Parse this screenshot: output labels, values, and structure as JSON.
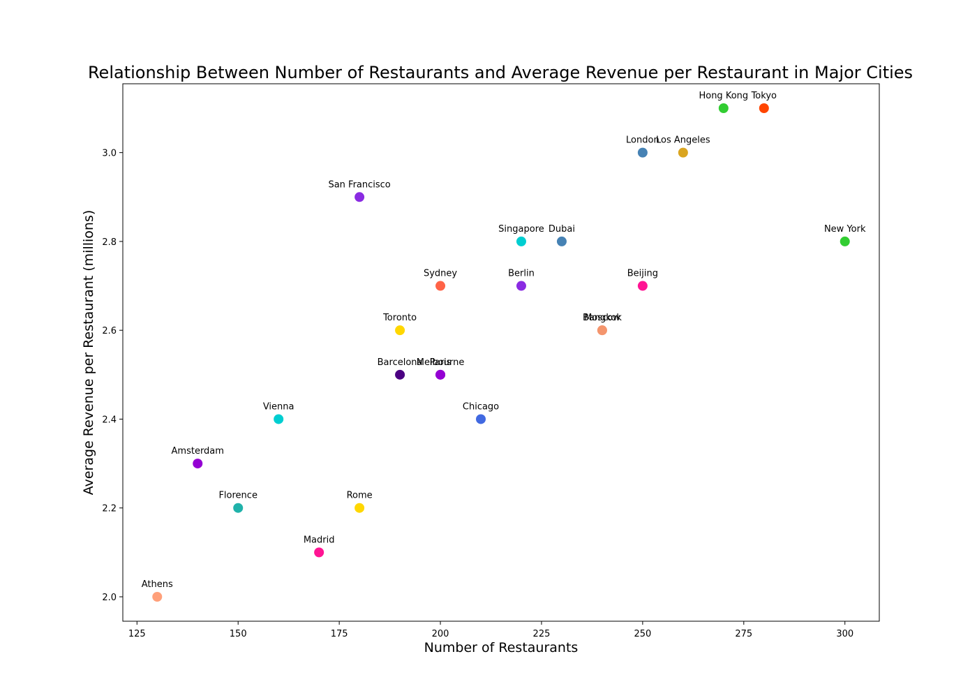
{
  "chart_data": {
    "type": "scatter",
    "title": "Relationship Between Number of Restaurants and Average Revenue per Restaurant in Major Cities",
    "xlabel": "Number of Restaurants",
    "ylabel": "Average Revenue per Restaurant (millions)",
    "xlim": [
      121.5,
      308.5
    ],
    "ylim": [
      1.945,
      3.155
    ],
    "xticks": [
      125,
      150,
      175,
      200,
      225,
      250,
      275,
      300
    ],
    "yticks": [
      2.0,
      2.2,
      2.4,
      2.6,
      2.8,
      3.0
    ],
    "yticks_labels": [
      "2.0",
      "2.2",
      "2.4",
      "2.6",
      "2.8",
      "3.0"
    ],
    "grid": false,
    "points": [
      {
        "name": "New York",
        "x": 300,
        "y": 2.8,
        "color": "#32cd32"
      },
      {
        "name": "Tokyo",
        "x": 280,
        "y": 3.1,
        "color": "#ff4500"
      },
      {
        "name": "Hong Kong",
        "x": 270,
        "y": 3.1,
        "color": "#32cd32"
      },
      {
        "name": "Los Angeles",
        "x": 260,
        "y": 3.0,
        "color": "#daa520"
      },
      {
        "name": "London",
        "x": 250,
        "y": 3.0,
        "color": "#4682b4"
      },
      {
        "name": "Beijing",
        "x": 250,
        "y": 2.7,
        "color": "#ff1493"
      },
      {
        "name": "Moscow",
        "x": 240,
        "y": 2.6,
        "color": "#ffa07a"
      },
      {
        "name": "Bangkok",
        "x": 240,
        "y": 2.6,
        "color": "#f4956d"
      },
      {
        "name": "Dubai",
        "x": 230,
        "y": 2.8,
        "color": "#4682b4"
      },
      {
        "name": "Singapore",
        "x": 220,
        "y": 2.8,
        "color": "#00ced1"
      },
      {
        "name": "Berlin",
        "x": 220,
        "y": 2.7,
        "color": "#8a2be2"
      },
      {
        "name": "Chicago",
        "x": 210,
        "y": 2.4,
        "color": "#4169e1"
      },
      {
        "name": "Sydney",
        "x": 200,
        "y": 2.7,
        "color": "#ff6347"
      },
      {
        "name": "Paris",
        "x": 200,
        "y": 2.5,
        "color": "#9400d3"
      },
      {
        "name": "Melbourne",
        "x": 200,
        "y": 2.5,
        "color": "#9400d3"
      },
      {
        "name": "Toronto",
        "x": 190,
        "y": 2.6,
        "color": "#ffd700"
      },
      {
        "name": "Barcelona",
        "x": 190,
        "y": 2.5,
        "color": "#4b0082"
      },
      {
        "name": "San Francisco",
        "x": 180,
        "y": 2.9,
        "color": "#8a2be2"
      },
      {
        "name": "Rome",
        "x": 180,
        "y": 2.2,
        "color": "#ffd700"
      },
      {
        "name": "Madrid",
        "x": 170,
        "y": 2.1,
        "color": "#ff1493"
      },
      {
        "name": "Vienna",
        "x": 160,
        "y": 2.4,
        "color": "#00ced1"
      },
      {
        "name": "Florence",
        "x": 150,
        "y": 2.2,
        "color": "#20b2aa"
      },
      {
        "name": "Amsterdam",
        "x": 140,
        "y": 2.3,
        "color": "#9400d3"
      },
      {
        "name": "Athens",
        "x": 130,
        "y": 2.0,
        "color": "#ffa07a"
      }
    ]
  }
}
